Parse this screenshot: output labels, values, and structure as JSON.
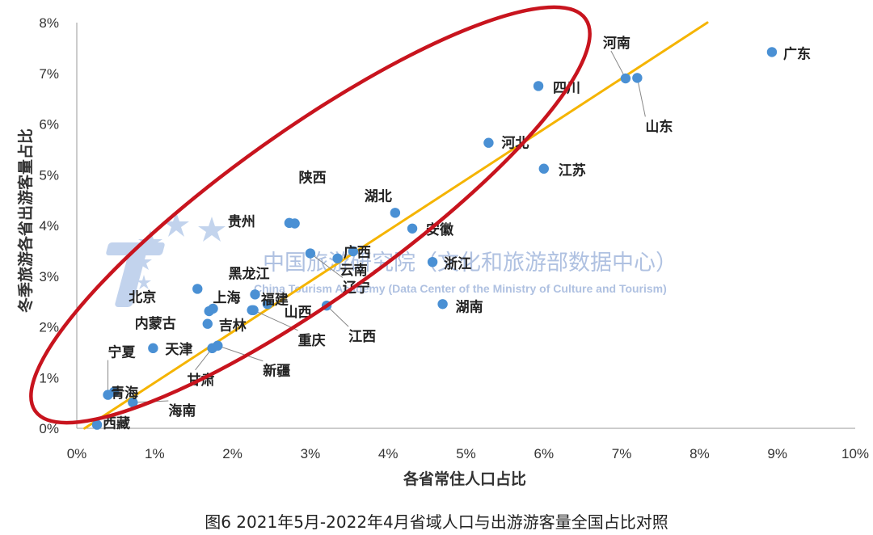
{
  "caption": "图6 2021年5月-2022年4月省域人口与出游游客量全国占比对照",
  "watermark": {
    "main": "中国旅游研究院（文化和旅游部数据中心）",
    "sub": "China Tourism Academy (Data Center of the Ministry of Culture and Tourism)"
  },
  "colors": {
    "point": "#4a90d4",
    "trendline": "#f5b400",
    "ellipse": "#c8141e",
    "leader": "#888888",
    "axis": "#999999",
    "watermark": "#6f8fc9"
  },
  "chart_data": {
    "type": "scatter",
    "xlabel": "各省常住人口占比",
    "ylabel": "冬季旅游各省出游客量占比",
    "xlim": [
      0,
      10
    ],
    "ylim": [
      0,
      8
    ],
    "xticks": [
      "0%",
      "1%",
      "2%",
      "3%",
      "4%",
      "5%",
      "6%",
      "7%",
      "8%",
      "9%",
      "10%"
    ],
    "yticks": [
      "0%",
      "1%",
      "2%",
      "3%",
      "4%",
      "5%",
      "6%",
      "7%",
      "8%"
    ],
    "grid": false,
    "trendline": {
      "x": [
        0.1,
        8.1
      ],
      "y": [
        0.0,
        8.0
      ]
    },
    "points": [
      {
        "name": "广东",
        "x": 8.93,
        "y": 7.42
      },
      {
        "name": "河南",
        "x": 7.05,
        "y": 6.9
      },
      {
        "name": "山东",
        "x": 7.2,
        "y": 6.91
      },
      {
        "name": "四川",
        "x": 5.93,
        "y": 6.75
      },
      {
        "name": "河北",
        "x": 5.29,
        "y": 5.63
      },
      {
        "name": "江苏",
        "x": 6.0,
        "y": 5.12
      },
      {
        "name": "陕西",
        "x": 2.8,
        "y": 4.04
      },
      {
        "name": "贵州",
        "x": 2.73,
        "y": 4.05
      },
      {
        "name": "湖北",
        "x": 4.09,
        "y": 4.25
      },
      {
        "name": "安徽",
        "x": 4.31,
        "y": 3.94
      },
      {
        "name": "广西",
        "x": 3.55,
        "y": 3.49
      },
      {
        "name": "云南",
        "x": 3.35,
        "y": 3.35
      },
      {
        "name": "浙江",
        "x": 4.57,
        "y": 3.28
      },
      {
        "name": "辽宁",
        "x": 3.0,
        "y": 3.45
      },
      {
        "name": "黑龙江",
        "x": 2.29,
        "y": 2.64
      },
      {
        "name": "福建",
        "x": 2.45,
        "y": 2.45
      },
      {
        "name": "北京",
        "x": 1.55,
        "y": 2.75
      },
      {
        "name": "上海",
        "x": 1.75,
        "y": 2.36
      },
      {
        "name": "内蒙古",
        "x": 1.7,
        "y": 2.31
      },
      {
        "name": "山西",
        "x": 2.25,
        "y": 2.33
      },
      {
        "name": "湖南",
        "x": 4.7,
        "y": 2.45
      },
      {
        "name": "吉林",
        "x": 1.68,
        "y": 2.06
      },
      {
        "name": "重庆",
        "x": 2.27,
        "y": 2.33
      },
      {
        "name": "江西",
        "x": 3.21,
        "y": 2.42
      },
      {
        "name": "天津",
        "x": 0.98,
        "y": 1.58
      },
      {
        "name": "新疆",
        "x": 1.81,
        "y": 1.63
      },
      {
        "name": "甘肃",
        "x": 1.74,
        "y": 1.58
      },
      {
        "name": "宁夏",
        "x": 0.4,
        "y": 0.66
      },
      {
        "name": "青海",
        "x": 0.48,
        "y": 0.72
      },
      {
        "name": "海南",
        "x": 0.72,
        "y": 0.51
      },
      {
        "name": "西藏",
        "x": 0.26,
        "y": 0.07
      }
    ]
  }
}
